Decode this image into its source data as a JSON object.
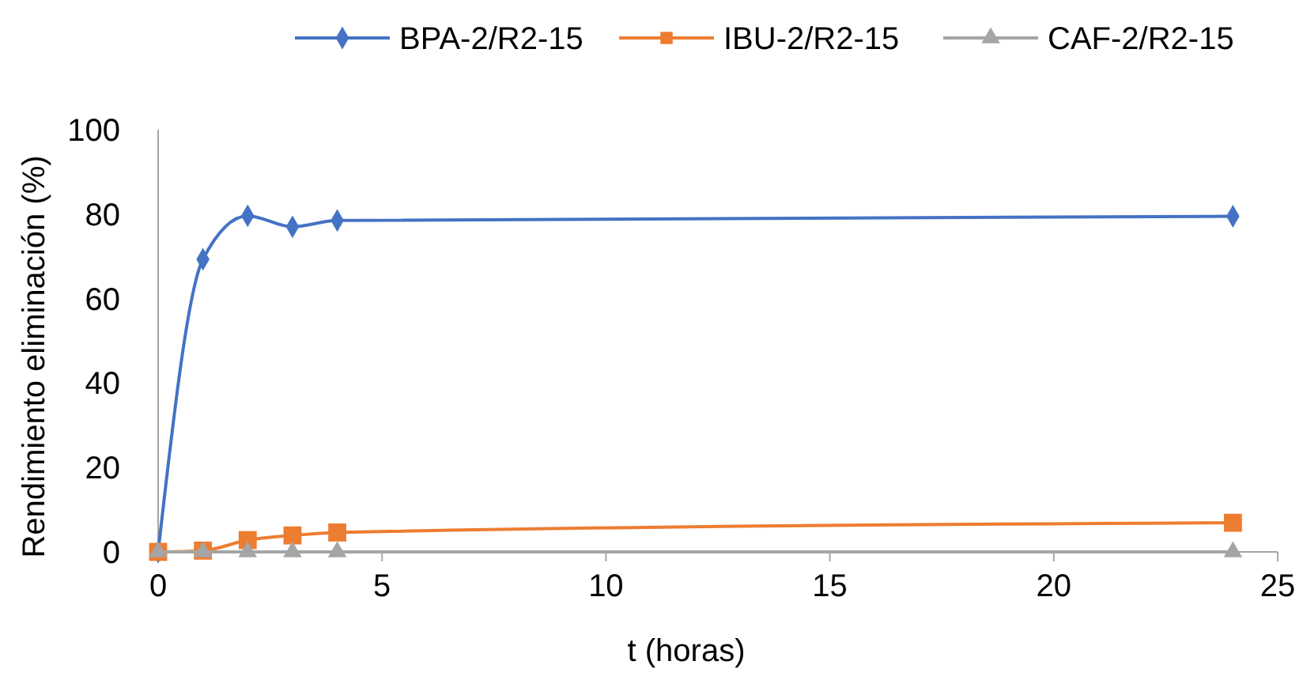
{
  "chart_data": {
    "type": "line",
    "xlabel": "t (horas)",
    "ylabel": "Rendimiento eliminación (%)",
    "x": [
      0,
      1,
      2,
      3,
      4,
      24
    ],
    "series": [
      {
        "name": "BPA-2/R2-15",
        "color": "#4472c4",
        "marker": "diamond",
        "values": [
          0,
          69.3,
          79.6,
          77,
          78.5,
          79.5
        ]
      },
      {
        "name": "IBU-2/R2-15",
        "color": "#ed7d31",
        "marker": "square",
        "values": [
          0,
          0.3,
          2.8,
          3.9,
          4.6,
          6.9
        ]
      },
      {
        "name": "CAF-2/R2-15",
        "color": "#a5a5a5",
        "marker": "triangle",
        "values": [
          0,
          0,
          0,
          0,
          0,
          0
        ]
      }
    ],
    "xlim": [
      0,
      25
    ],
    "xticks": [
      0,
      5,
      10,
      15,
      20,
      25
    ],
    "ylim": [
      0,
      100
    ],
    "yticks": [
      0,
      20,
      40,
      60,
      80,
      100
    ],
    "grid": false,
    "legend": "top",
    "line_style": "solid"
  }
}
